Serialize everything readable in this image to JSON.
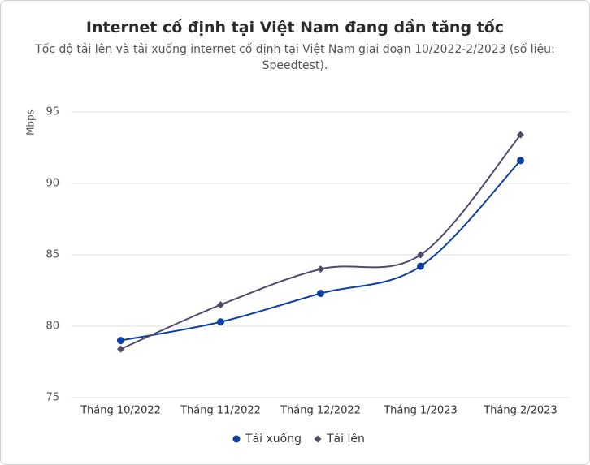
{
  "chart_data": {
    "type": "line",
    "title": "Internet cố định tại Việt Nam đang dần tăng tốc",
    "subtitle": "Tốc độ tải lên và tải xuống internet cố định tại Việt Nam giai đoạn 10/2022-2/2023 (số liệu: Speedtest).",
    "y_label": "Mbps",
    "categories": [
      "Tháng 10/2022",
      "Tháng 11/2022",
      "Tháng 12/2022",
      "Tháng 1/2023",
      "Tháng 2/2023"
    ],
    "series": [
      {
        "name": "Tải xuống",
        "color": "#0d3fa0",
        "marker": "circle",
        "values": [
          79.0,
          80.3,
          82.3,
          84.2,
          91.6
        ]
      },
      {
        "name": "Tải lên",
        "color": "#514a6b",
        "marker": "diamond",
        "values": [
          78.4,
          81.5,
          84.0,
          85.0,
          93.4
        ]
      }
    ],
    "ylim": [
      75,
      95
    ],
    "yticks": [
      75,
      80,
      85,
      90,
      95
    ],
    "grid": true
  }
}
